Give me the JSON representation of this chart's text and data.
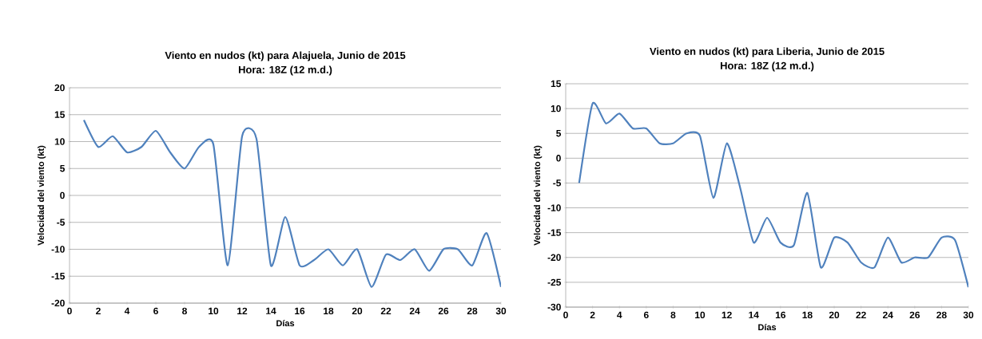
{
  "chart_data": [
    {
      "type": "line",
      "title": "Viento en nudos (kt) para Alajuela, Junio de 2015",
      "subtitle": "Hora: 18Z (12 m.d.)",
      "xlabel": "Días",
      "ylabel": "Velocidad del viento (kt)",
      "x": [
        1,
        2,
        3,
        4,
        5,
        6,
        7,
        8,
        9,
        10,
        11,
        12,
        13,
        14,
        15,
        16,
        17,
        18,
        19,
        20,
        21,
        22,
        23,
        24,
        25,
        26,
        27,
        28,
        29,
        30
      ],
      "series": [
        {
          "color": "#4f81bd",
          "values": [
            14,
            9,
            11,
            8,
            9,
            12,
            8,
            5,
            9,
            9.5,
            -13,
            11,
            10.5,
            -13,
            -4,
            -13,
            -12,
            -10,
            -13,
            -10,
            -17,
            -11,
            -12,
            -10,
            -14,
            -10,
            -10,
            -13,
            -7,
            -17
          ]
        }
      ],
      "xlim": [
        0,
        30
      ],
      "xticks": [
        0,
        2,
        4,
        6,
        8,
        10,
        12,
        14,
        16,
        18,
        20,
        22,
        24,
        26,
        28,
        30
      ],
      "ylim": [
        -20,
        20
      ],
      "yticks": [
        -20,
        -15,
        -10,
        -5,
        0,
        5,
        10,
        15,
        20
      ],
      "grid": "y",
      "marker": "none",
      "line_style": "solid"
    },
    {
      "type": "line",
      "title": "Viento en nudos (kt) para Liberia, Junio de 2015",
      "subtitle": "Hora: 18Z (12 m.d.)",
      "xlabel": "Días",
      "ylabel": "Velocidad del viento (kt)",
      "x": [
        1,
        2,
        3,
        4,
        5,
        6,
        7,
        8,
        9,
        10,
        11,
        12,
        13,
        14,
        15,
        16,
        17,
        18,
        19,
        20,
        21,
        22,
        23,
        24,
        25,
        26,
        27,
        28,
        29,
        30
      ],
      "series": [
        {
          "color": "#4f81bd",
          "values": [
            -5,
            11,
            7,
            9,
            6,
            6,
            3,
            3,
            5,
            4.5,
            -8,
            3,
            -6,
            -17,
            -12,
            -17,
            -17.5,
            -7,
            -22,
            -16,
            -17,
            -21,
            -22,
            -16,
            -21,
            -20,
            -20,
            -16,
            -16.5,
            -26
          ]
        }
      ],
      "xlim": [
        0,
        30
      ],
      "xticks": [
        0,
        2,
        4,
        6,
        8,
        10,
        12,
        14,
        16,
        18,
        20,
        22,
        24,
        26,
        28,
        30
      ],
      "ylim": [
        -30,
        15
      ],
      "yticks": [
        -30,
        -25,
        -20,
        -15,
        -10,
        -5,
        0,
        5,
        10,
        15
      ],
      "grid": "y",
      "marker": "none",
      "line_style": "solid"
    }
  ]
}
